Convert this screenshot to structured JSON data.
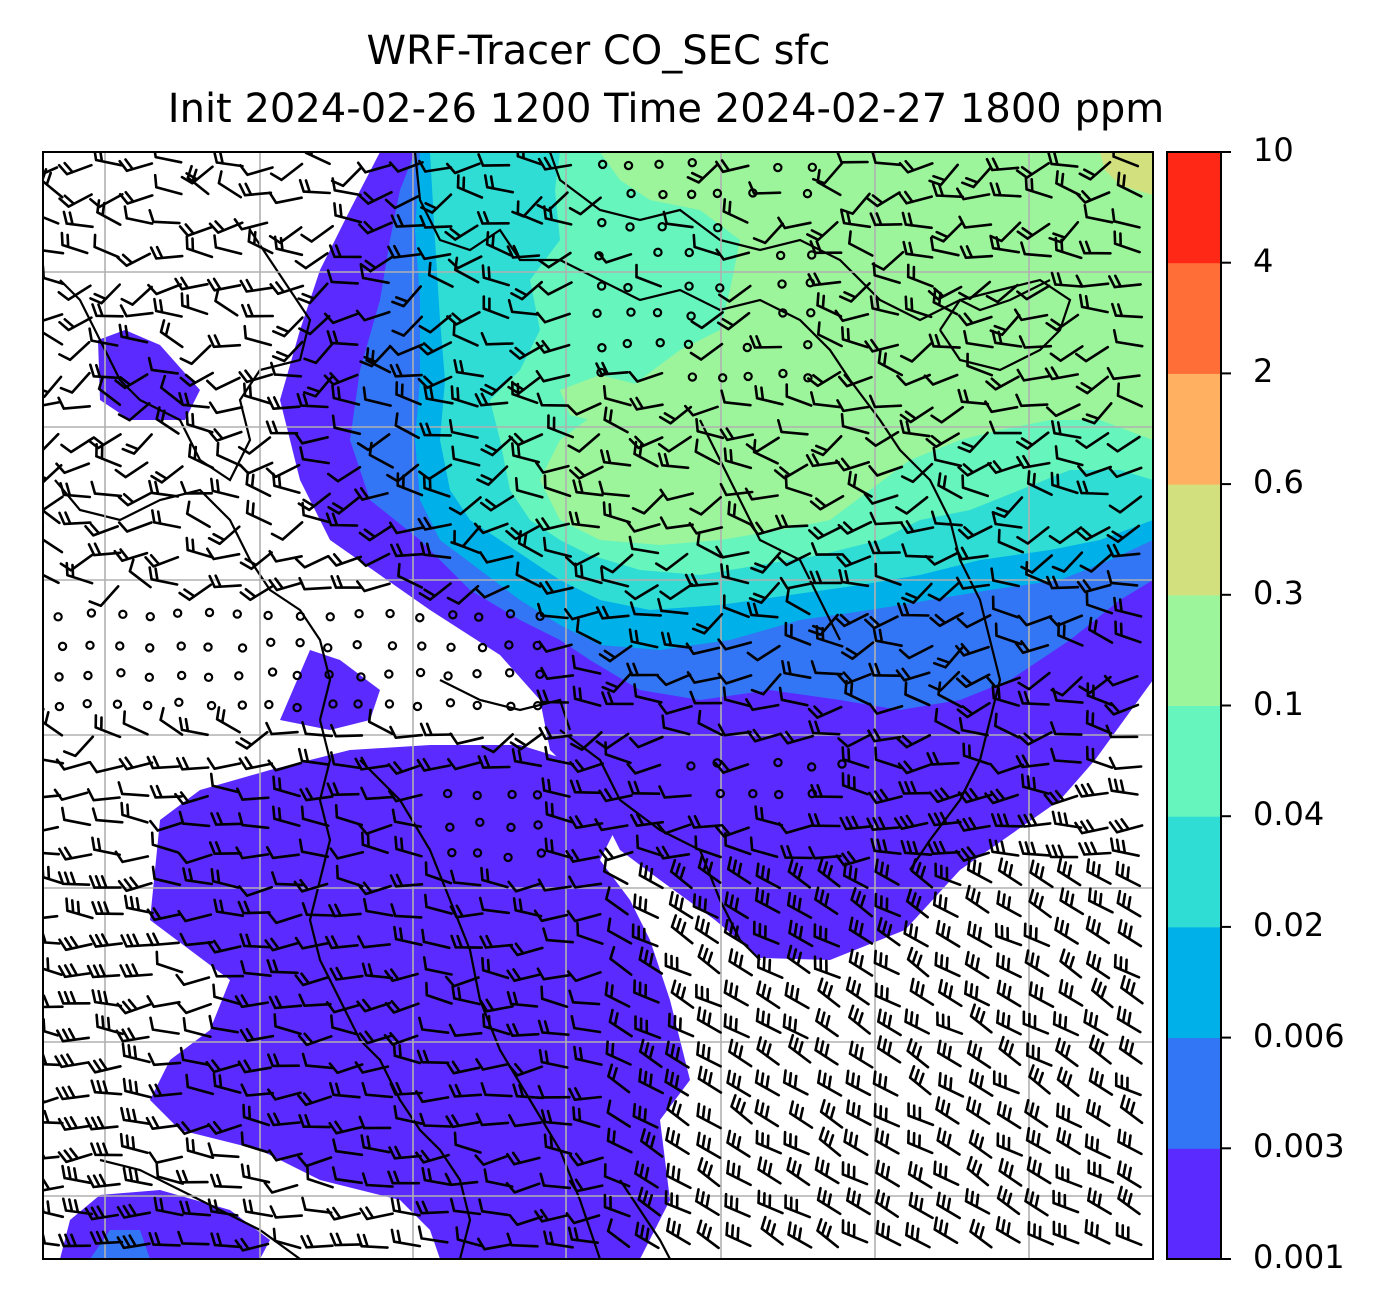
{
  "title": {
    "line1": "WRF-Tracer CO_SEC sfc",
    "line2": "Init 2024-02-26 1200 Time 2024-02-27 1800 ppm"
  },
  "colorbar": {
    "levels": [
      "0.001",
      "0.003",
      "0.006",
      "0.02",
      "0.04",
      "0.1",
      "0.3",
      "0.6",
      "2",
      "4",
      "10"
    ],
    "colors": [
      "#5b2aff",
      "#3376f5",
      "#00b0e8",
      "#30ddd4",
      "#66f5bd",
      "#9cf59b",
      "#d3e07e",
      "#ffb061",
      "#ff6e37",
      "#ff2816"
    ]
  },
  "map": {
    "variable": "CO_SEC",
    "level": "sfc",
    "units": "ppm",
    "grid": "on",
    "overlays": [
      "tracer-concentration-fill",
      "wind-barbs",
      "coastlines"
    ]
  }
}
